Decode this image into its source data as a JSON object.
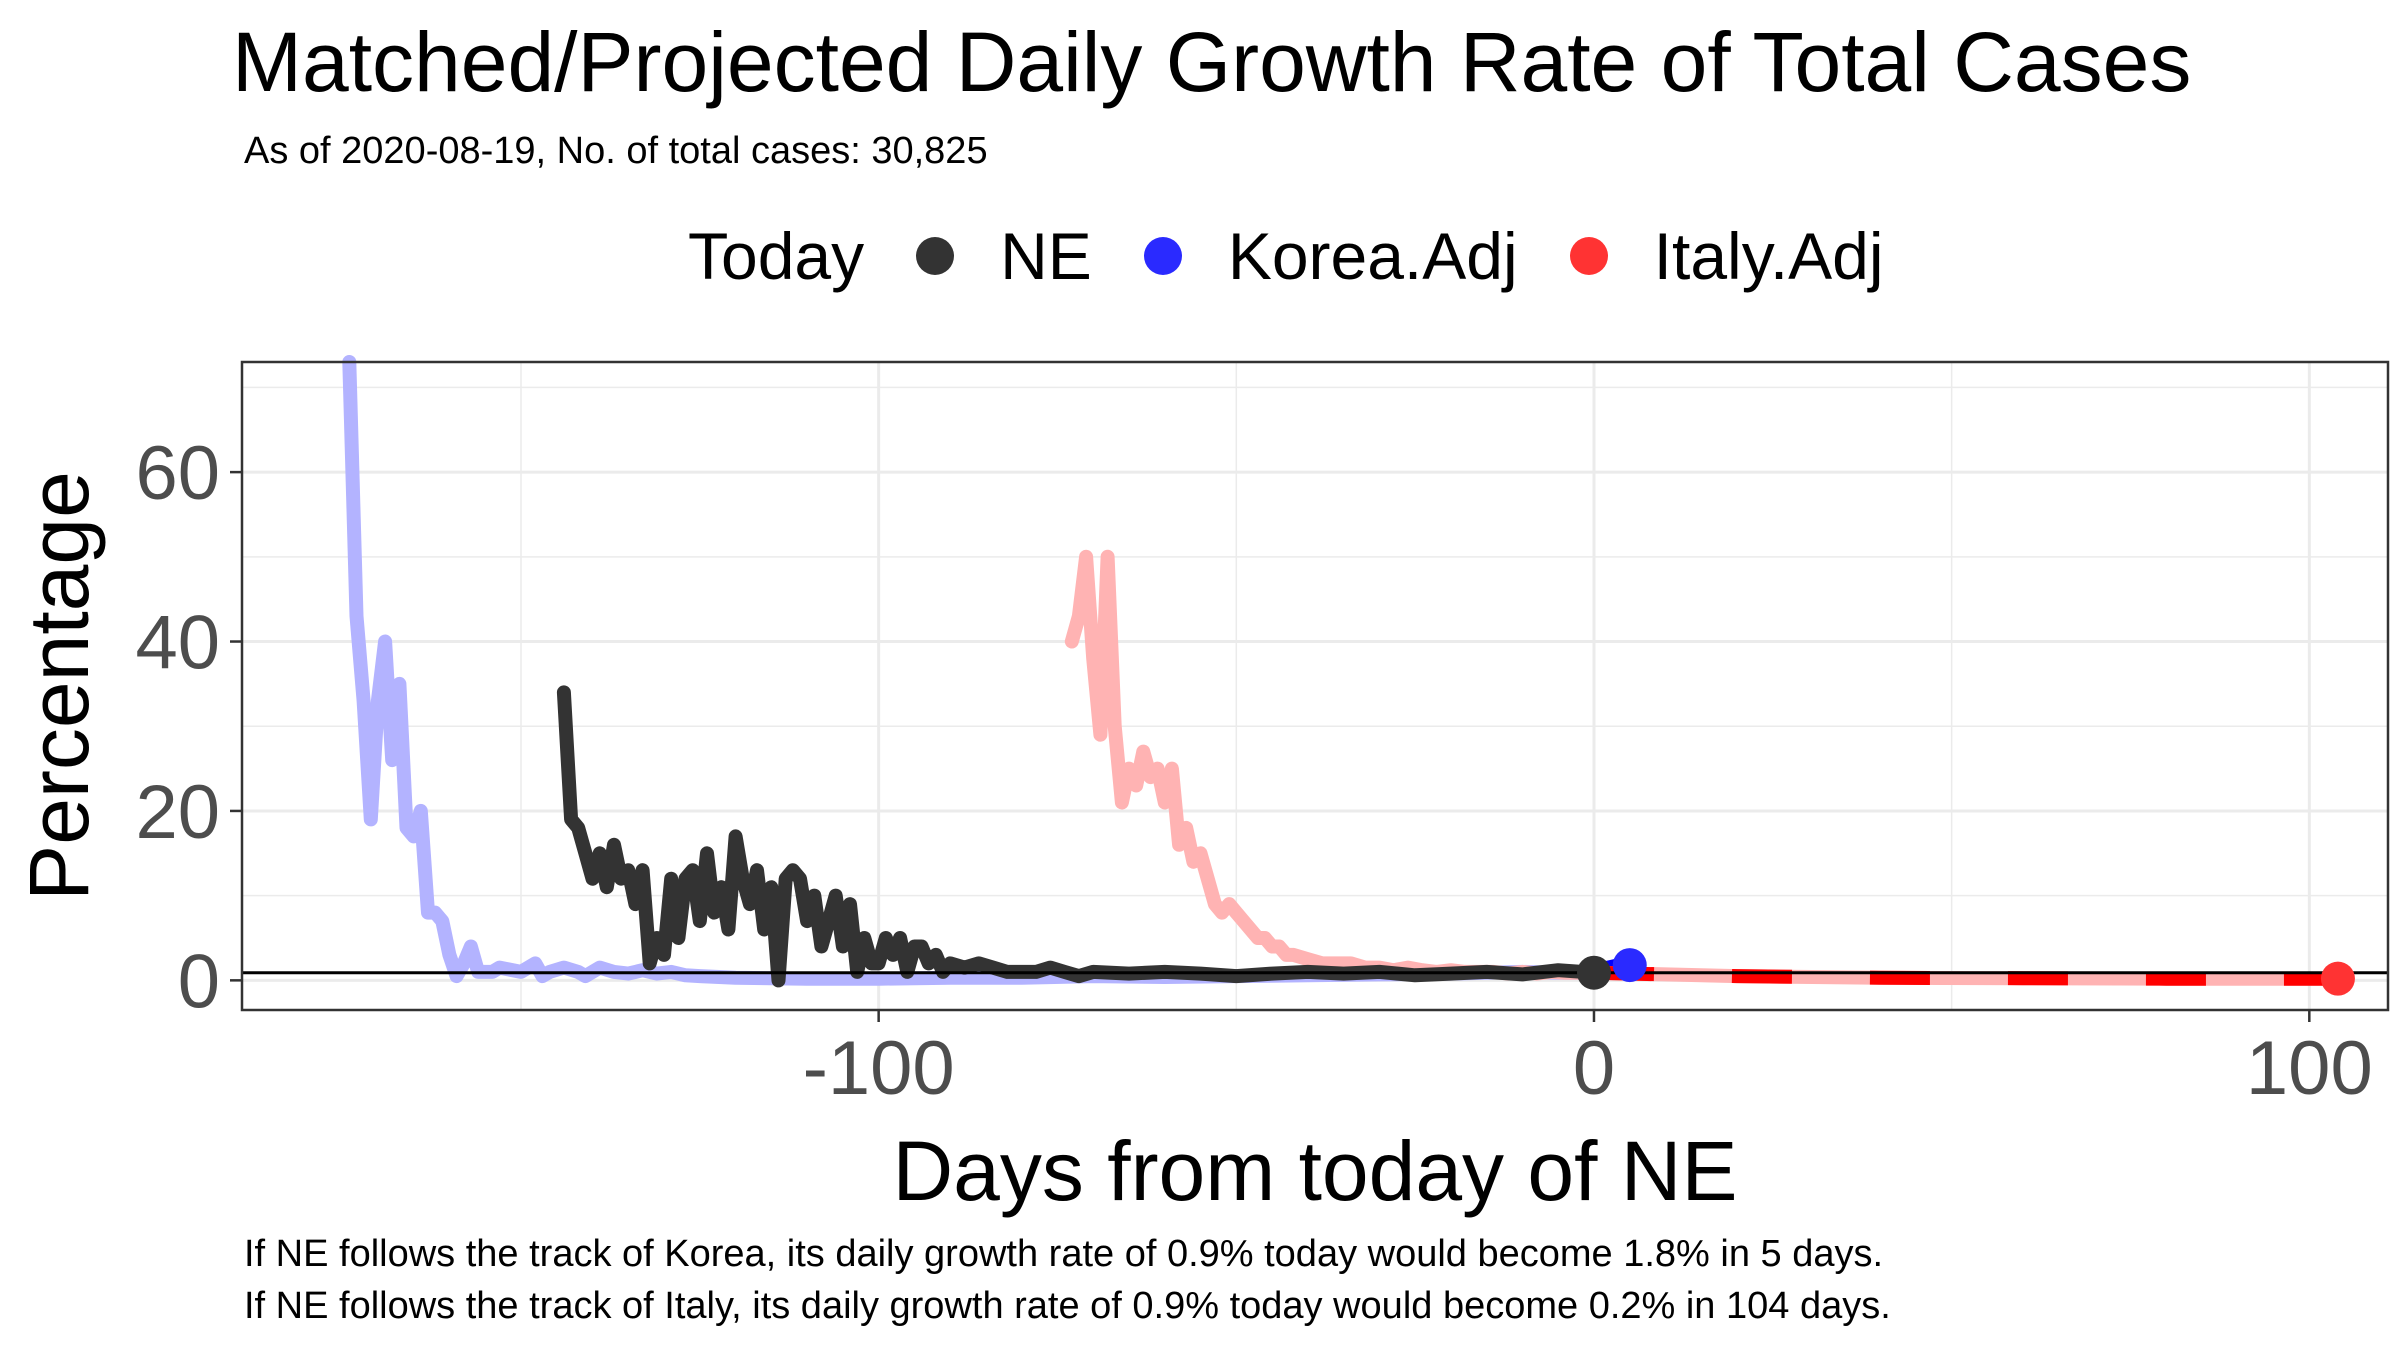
{
  "chart_data": {
    "type": "line",
    "title": "Matched/Projected Daily Growth Rate of Total Cases",
    "subtitle": "As of 2020-08-19, No. of total cases: 30,825",
    "legend_title": "Today",
    "legend_position": "top",
    "xlabel": "Days from today of NE",
    "ylabel": "Percentage",
    "xlim": [
      -189,
      111
    ],
    "ylim": [
      -3.5,
      73
    ],
    "x_ticks": [
      -100,
      0,
      100
    ],
    "x_tick_labels": [
      "-100",
      "0",
      "100"
    ],
    "y_ticks": [
      0,
      20,
      40,
      60
    ],
    "y_tick_labels": [
      "0",
      "20",
      "40",
      "60"
    ],
    "grid": true,
    "reference_line": {
      "y": 0.9
    },
    "caption": [
      "If NE follows the track of Korea, its daily growth rate of 0.9% today would become 1.8% in 5 days.",
      "If NE follows the track of Italy, its daily growth rate of 0.9% today would become 0.2% in 104 days."
    ],
    "series": [
      {
        "name": "Korea.Adj",
        "color": "#b3b3ff",
        "style": "solid",
        "x": [
          -174,
          -173,
          -172,
          -171,
          -170,
          -169,
          -168,
          -167,
          -166,
          -165,
          -164,
          -163,
          -162,
          -161,
          -160,
          -159,
          -158,
          -157,
          -156,
          -155,
          -154,
          -153,
          -150,
          -148,
          -147,
          -146,
          -144,
          -142,
          -141,
          -140,
          -139,
          -137,
          -135,
          -133,
          -131,
          -129,
          -127,
          -125,
          -120,
          -110,
          -100,
          -90,
          -80,
          -70,
          -60,
          -50,
          -40,
          -30,
          -20,
          -10,
          -5,
          0
        ],
        "values": [
          73,
          43,
          33,
          19,
          33,
          40,
          26,
          35,
          18,
          17,
          20,
          8,
          8,
          7,
          3,
          0.5,
          2,
          4,
          1,
          1,
          1,
          1.5,
          1,
          2,
          0.5,
          1,
          1.5,
          1,
          0.5,
          1,
          1.5,
          1,
          0.8,
          1.2,
          0.8,
          1,
          0.6,
          0.5,
          0.3,
          0.2,
          0.2,
          0.3,
          0.3,
          0.5,
          0.4,
          0.5,
          0.6,
          0.7,
          0.8,
          1,
          0.9,
          0.9
        ]
      },
      {
        "name": "Korea.Adj",
        "color": "#0000ff",
        "style": "solid",
        "x": [
          0,
          1,
          2,
          3,
          4,
          5
        ],
        "values": [
          0.9,
          1.2,
          1.5,
          1.7,
          1.8,
          1.8
        ]
      },
      {
        "name": "Italy.Adj",
        "color": "#ffb3b3",
        "style": "solid",
        "x": [
          -73,
          -72,
          -71,
          -70,
          -69,
          -68,
          -67,
          -66,
          -65,
          -64,
          -63,
          -62,
          -61,
          -60,
          -59,
          -58,
          -57,
          -56,
          -55,
          -54,
          -53,
          -52,
          -51,
          -50,
          -49,
          -48,
          -47,
          -46,
          -45,
          -44,
          -43,
          -42,
          -40,
          -38,
          -36,
          -34,
          -32,
          -30,
          -28,
          -26,
          -24,
          -22,
          -20,
          -18,
          -16,
          -14,
          -12,
          -10,
          -8,
          -6,
          -4,
          -2,
          0
        ],
        "values": [
          40,
          43,
          50,
          38,
          29,
          50,
          30,
          21,
          25,
          23,
          27,
          24,
          25,
          21,
          25,
          16,
          18,
          14,
          15,
          12,
          9,
          8,
          9,
          8,
          7,
          6,
          5,
          5,
          4,
          4,
          3,
          3,
          2.5,
          2,
          2,
          2,
          1.5,
          1.5,
          1.2,
          1.5,
          1.2,
          1,
          1.2,
          1,
          1,
          1,
          0.8,
          1,
          0.8,
          1,
          0.9,
          0.9,
          0.9
        ]
      },
      {
        "name": "Italy.Adj",
        "color": "#ffb3b3",
        "style": "solid",
        "x": [
          0,
          20,
          40,
          60,
          80,
          104
        ],
        "values": [
          0.9,
          0.5,
          0.3,
          0.25,
          0.2,
          0.2
        ]
      },
      {
        "name": "Italy.Adj",
        "color": "#ff0000",
        "style": "dashed",
        "x": [
          0,
          20,
          40,
          60,
          80,
          104
        ],
        "values": [
          0.9,
          0.5,
          0.3,
          0.25,
          0.2,
          0.2
        ]
      },
      {
        "name": "NE",
        "color": "#333333",
        "style": "solid",
        "x": [
          -144,
          -143,
          -142,
          -141,
          -140,
          -139,
          -138,
          -137,
          -136,
          -135,
          -134,
          -133,
          -132,
          -131,
          -130,
          -129,
          -128,
          -127,
          -126,
          -125,
          -124,
          -123,
          -122,
          -121,
          -120,
          -119,
          -118,
          -117,
          -116,
          -115,
          -114,
          -113,
          -112,
          -111,
          -110,
          -109,
          -108,
          -107,
          -106,
          -105,
          -104,
          -103,
          -102,
          -101,
          -100,
          -99,
          -98,
          -97,
          -96,
          -95,
          -94,
          -93,
          -92,
          -91,
          -90,
          -88,
          -86,
          -84,
          -82,
          -80,
          -78,
          -76,
          -74,
          -72,
          -70,
          -65,
          -60,
          -55,
          -50,
          -45,
          -40,
          -35,
          -30,
          -25,
          -20,
          -15,
          -10,
          -5,
          0
        ],
        "values": [
          34,
          19,
          18,
          15,
          12,
          15,
          11,
          16,
          12,
          13,
          9,
          13,
          2,
          5,
          3,
          12,
          5,
          12,
          13,
          7,
          15,
          8,
          11,
          6,
          17,
          12,
          9,
          13,
          6,
          11,
          0,
          12,
          13,
          12,
          7,
          10,
          4,
          7,
          10,
          4,
          9,
          1,
          5,
          2,
          2,
          5,
          3,
          5,
          1,
          4,
          4,
          2,
          3,
          1,
          2,
          1.5,
          2,
          1.5,
          1,
          1,
          1,
          1.5,
          1,
          0.5,
          1,
          0.8,
          1,
          0.8,
          0.5,
          0.8,
          1,
          0.8,
          1,
          0.6,
          0.8,
          1,
          0.7,
          1.2,
          0.9
        ]
      }
    ],
    "points": [
      {
        "series": "NE",
        "x": 0,
        "y": 0.9,
        "color": "#333333"
      },
      {
        "series": "Korea.Adj",
        "x": 5,
        "y": 1.8,
        "color": "#2a2aff"
      },
      {
        "series": "Italy.Adj",
        "x": 104,
        "y": 0.2,
        "color": "#ff3333"
      }
    ]
  },
  "legend": {
    "title": "Today",
    "items": [
      {
        "label": "NE",
        "color": "#333333"
      },
      {
        "label": "Korea.Adj",
        "color": "#2a2aff"
      },
      {
        "label": "Italy.Adj",
        "color": "#ff3333"
      }
    ]
  }
}
